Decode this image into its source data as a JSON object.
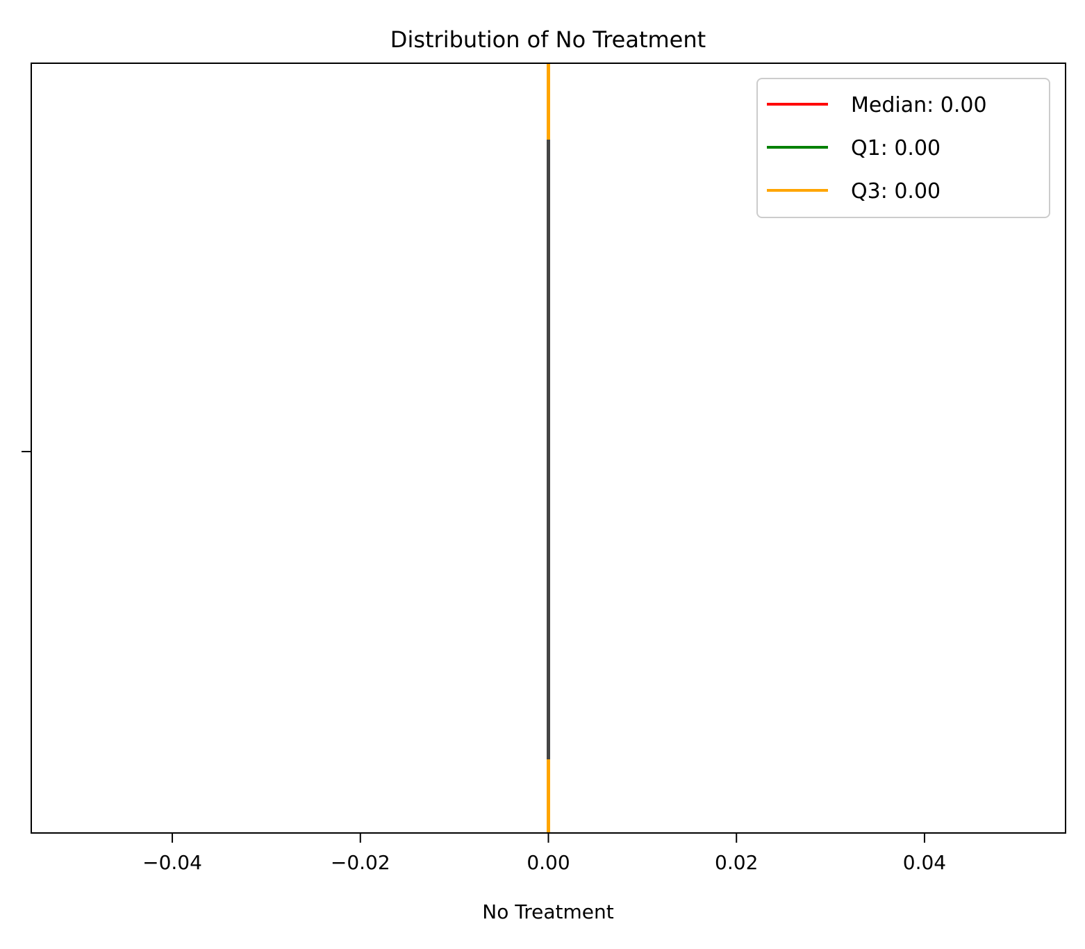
{
  "chart_data": {
    "type": "box",
    "title": "Distribution of No Treatment",
    "xlabel": "No Treatment",
    "ylabel": "",
    "xlim": [
      -0.055,
      0.055
    ],
    "xticks": [
      -0.04,
      -0.02,
      0.0,
      0.02,
      0.04
    ],
    "xtick_labels": [
      "−0.04",
      "−0.02",
      "0.00",
      "0.02",
      "0.04"
    ],
    "grid": false,
    "box": {
      "min": 0.0,
      "q1": 0.0,
      "median": 0.0,
      "q3": 0.0,
      "max": 0.0,
      "color": "#454545"
    },
    "reference_lines": [
      {
        "name": "Median: 0.00",
        "value": 0.0,
        "color": "#ff0000"
      },
      {
        "name": "Q1: 0.00",
        "value": 0.0,
        "color": "#008000"
      },
      {
        "name": "Q3: 0.00",
        "value": 0.0,
        "color": "#ffa500"
      }
    ],
    "legend_position": "top-right"
  }
}
